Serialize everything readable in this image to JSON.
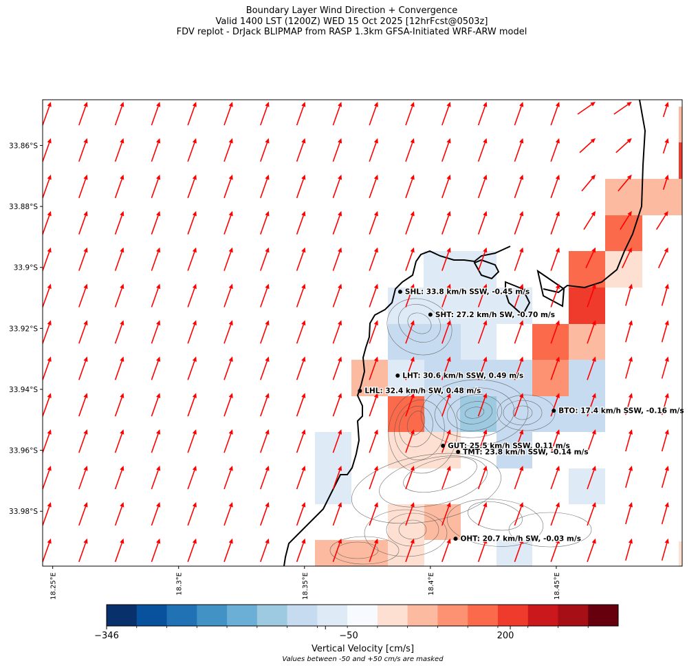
{
  "title": {
    "line1": "Boundary Layer Wind Direction + Convergence",
    "line2": "Valid 1400 LST (1200Z) WED 15 Oct 2025 [12hrFcst@0503z]",
    "line3": "FDV replot - DrJack BLIPMAP from RASP 1.3km GFSA-Initiated WRF-ARW model"
  },
  "map": {
    "lat_range": [
      -33.998,
      -33.845
    ],
    "lon_range": [
      18.246,
      18.5
    ],
    "y_tick_labels": [
      "33.86°S",
      "33.88°S",
      "33.9°S",
      "33.92°S",
      "33.94°S",
      "33.96°S",
      "33.98°S"
    ],
    "y_tick_values": [
      -33.86,
      -33.88,
      -33.9,
      -33.92,
      -33.94,
      -33.96,
      -33.98
    ],
    "x_tick_labels": [
      "18.25°E",
      "18.3°E",
      "18.35°E",
      "18.4°E",
      "18.45°E"
    ],
    "x_tick_values": [
      18.25,
      18.3,
      18.35,
      18.4,
      18.45
    ],
    "wind_vector_color": "#ff0000",
    "coastline_color": "#000000",
    "stations": [
      {
        "id": "SHL",
        "label": "SHL: 33.8 km/h SSW, -0.45 m/s",
        "lat": -33.908,
        "lon": 18.388
      },
      {
        "id": "SHT",
        "label": "SHT: 27.2 km/h SW, -0.70 m/s",
        "lat": -33.9155,
        "lon": 18.4
      },
      {
        "id": "LHT",
        "label": "LHT: 30.6 km/h SSW, 0.49 m/s",
        "lat": -33.9355,
        "lon": 18.387
      },
      {
        "id": "LHL",
        "label": "LHL: 32.4 km/h SW, 0.48 m/s",
        "lat": -33.9405,
        "lon": 18.372
      },
      {
        "id": "BTO",
        "label": "BTO: 17.4 km/h SSW, -0.16 m/s",
        "lat": -33.947,
        "lon": 18.449
      },
      {
        "id": "GUT",
        "label": "GUT: 25.5 km/h SSW, 0.11 m/s",
        "lat": -33.9585,
        "lon": 18.405
      },
      {
        "id": "TMT",
        "label": "TMT: 23.8 km/h SSW, -0.14 m/s",
        "lat": -33.9605,
        "lon": 18.411
      },
      {
        "id": "OHT",
        "label": "OHT: 20.7 km/h SW, -0.03 m/s",
        "lat": -33.989,
        "lon": 18.41
      }
    ]
  },
  "colorbar": {
    "label": "Vertical Velocity [cm/s]",
    "note": "Values between -50 and +50 cm/s are masked",
    "tick_labels": [
      "−346",
      "−50",
      "200"
    ],
    "tick_values": [
      -346,
      -50,
      200
    ],
    "range": [
      -346,
      346
    ],
    "colors": [
      "#08306b",
      "#08519c",
      "#2171b5",
      "#4292c6",
      "#6baed6",
      "#9ecae1",
      "#c6dbef",
      "#deebf7",
      "#f7fbff",
      "#fee0d2",
      "#fcbba1",
      "#fc9272",
      "#fb6a4a",
      "#ef3b2c",
      "#cb181d",
      "#a50f15",
      "#67000d"
    ]
  }
}
